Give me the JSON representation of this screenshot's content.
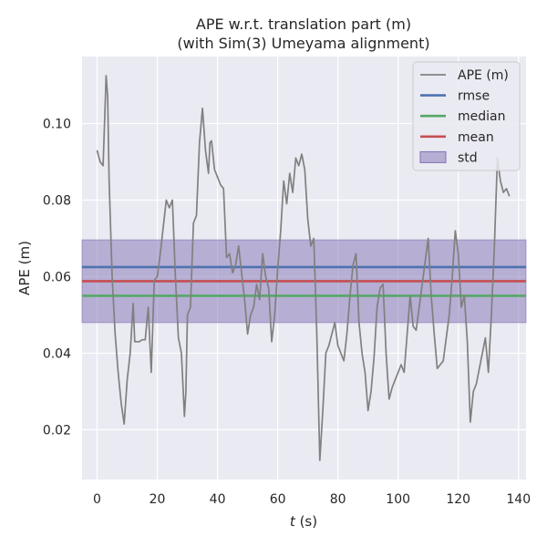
{
  "chart_data": {
    "type": "line",
    "title_line1": "APE w.r.t. translation part (m)",
    "title_line2": "(with Sim(3) Umeyama alignment)",
    "xlabel_italic": "t",
    "xlabel_unit": " (s)",
    "ylabel": "APE (m)",
    "xlim": [
      -5,
      142.5
    ],
    "ylim": [
      0.007,
      0.1175
    ],
    "x_ticks": [
      0,
      20,
      40,
      60,
      80,
      100,
      120,
      140
    ],
    "y_ticks": [
      0.02,
      0.04,
      0.06,
      0.08,
      0.1
    ],
    "y_tick_labels": [
      "0.02",
      "0.04",
      "0.06",
      "0.08",
      "0.10"
    ],
    "grid": true,
    "legend_position": "top-right",
    "stats": {
      "rmse": 0.0625,
      "median": 0.055,
      "mean": 0.0588,
      "std": 0.0108
    },
    "legend": [
      {
        "label": "APE (m)",
        "kind": "line",
        "color": "#808080"
      },
      {
        "label": "rmse",
        "kind": "line",
        "color": "#4c72b0"
      },
      {
        "label": "median",
        "kind": "line",
        "color": "#55a868"
      },
      {
        "label": "mean",
        "kind": "line",
        "color": "#c44e52"
      },
      {
        "label": "std",
        "kind": "patch",
        "color": "#8172b3"
      }
    ],
    "series": [
      {
        "name": "APE (m)",
        "color": "#808080",
        "x": [
          0,
          1,
          2,
          3,
          3.5,
          4,
          5,
          6,
          7,
          8,
          9,
          10,
          11,
          12,
          12.5,
          13,
          14,
          15,
          16,
          17,
          18,
          19,
          20,
          21,
          22,
          23,
          24,
          24.5,
          25,
          26,
          27,
          28,
          29,
          29.5,
          30,
          31,
          32,
          33,
          34,
          35,
          36,
          37,
          37.5,
          38,
          39,
          40,
          41,
          42,
          43,
          44,
          45,
          46,
          47,
          48,
          49,
          50,
          51,
          52,
          53,
          54,
          55,
          56,
          57,
          58,
          59,
          60,
          61,
          62,
          63,
          64,
          65,
          66,
          67,
          68,
          69,
          70,
          71,
          72,
          73,
          74,
          75,
          76,
          77,
          78,
          79,
          80,
          81,
          82,
          83,
          84,
          85,
          86,
          87,
          88,
          89,
          90,
          91,
          92,
          93,
          94,
          95,
          96,
          97,
          98,
          99,
          100,
          101,
          102,
          103,
          104,
          105,
          106,
          107,
          108,
          109,
          110,
          111,
          112,
          113,
          114,
          115,
          116,
          117,
          118,
          119,
          120,
          121,
          122,
          123,
          124,
          125,
          126,
          127,
          128,
          129,
          130,
          131,
          132,
          133,
          134,
          135,
          136,
          137
        ],
        "y": [
          0.093,
          0.09,
          0.089,
          0.1125,
          0.107,
          0.085,
          0.06,
          0.045,
          0.035,
          0.027,
          0.0215,
          0.033,
          0.04,
          0.053,
          0.043,
          0.043,
          0.043,
          0.0435,
          0.0435,
          0.052,
          0.035,
          0.059,
          0.06,
          0.066,
          0.073,
          0.08,
          0.078,
          0.079,
          0.08,
          0.06,
          0.044,
          0.04,
          0.0235,
          0.03,
          0.05,
          0.052,
          0.074,
          0.076,
          0.095,
          0.104,
          0.093,
          0.087,
          0.095,
          0.0955,
          0.088,
          0.086,
          0.084,
          0.083,
          0.065,
          0.066,
          0.061,
          0.063,
          0.068,
          0.061,
          0.054,
          0.045,
          0.05,
          0.052,
          0.058,
          0.054,
          0.066,
          0.06,
          0.057,
          0.043,
          0.05,
          0.062,
          0.072,
          0.085,
          0.079,
          0.087,
          0.082,
          0.091,
          0.089,
          0.092,
          0.088,
          0.075,
          0.068,
          0.07,
          0.045,
          0.012,
          0.025,
          0.04,
          0.042,
          0.045,
          0.048,
          0.042,
          0.04,
          0.038,
          0.045,
          0.055,
          0.063,
          0.066,
          0.048,
          0.04,
          0.035,
          0.025,
          0.03,
          0.039,
          0.052,
          0.057,
          0.058,
          0.04,
          0.028,
          0.031,
          0.033,
          0.035,
          0.037,
          0.035,
          0.045,
          0.055,
          0.047,
          0.046,
          0.052,
          0.058,
          0.064,
          0.07,
          0.055,
          0.045,
          0.036,
          0.037,
          0.038,
          0.044,
          0.05,
          0.06,
          0.072,
          0.066,
          0.052,
          0.055,
          0.043,
          0.022,
          0.03,
          0.032,
          0.036,
          0.04,
          0.044,
          0.035,
          0.05,
          0.068,
          0.091,
          0.085,
          0.082,
          0.083,
          0.081
        ]
      }
    ]
  }
}
